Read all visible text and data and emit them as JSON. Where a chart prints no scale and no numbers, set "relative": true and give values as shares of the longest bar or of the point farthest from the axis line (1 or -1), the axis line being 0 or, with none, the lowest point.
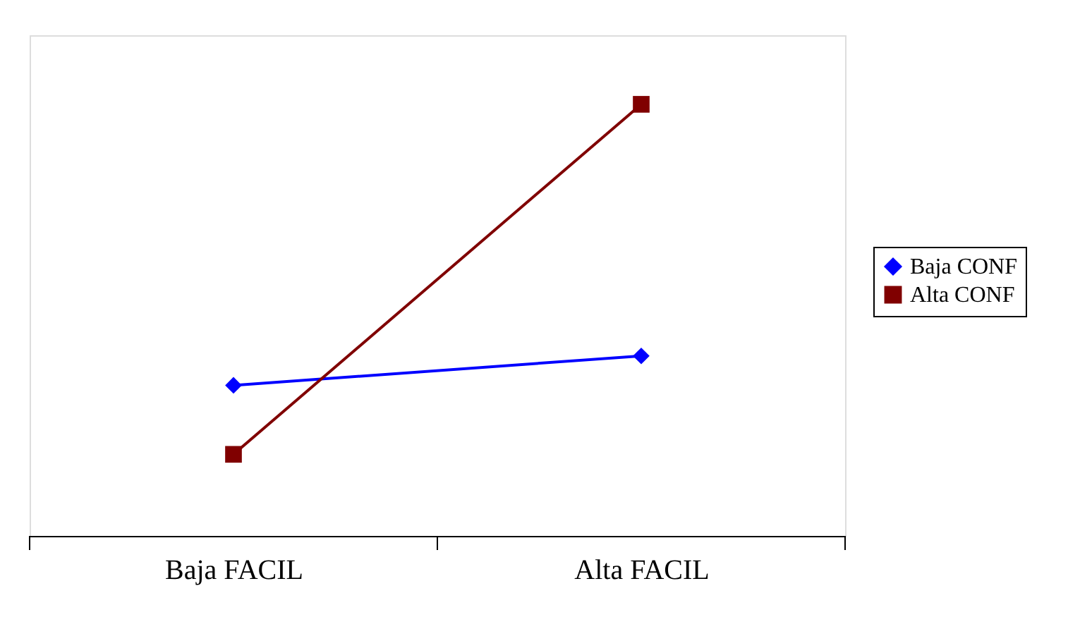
{
  "chart_data": {
    "type": "line",
    "relative": true,
    "categories": [
      "Baja FACIL",
      "Alta FACIL"
    ],
    "grid": false,
    "legend": "right",
    "series": [
      {
        "name": "Baja CONF",
        "color": "#0000ff",
        "marker": "diamond",
        "values": [
          0.349,
          0.417
        ]
      },
      {
        "name": "Alta CONF",
        "color": "#800000",
        "marker": "square",
        "values": [
          0.189,
          1.0
        ]
      }
    ]
  }
}
